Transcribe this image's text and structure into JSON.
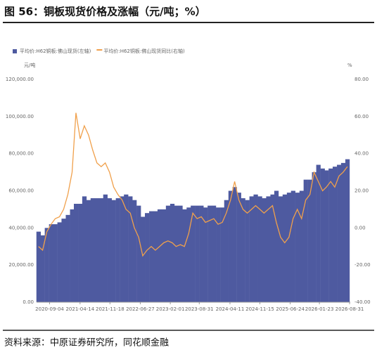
{
  "title": "图 56：铜板现货价格及涨幅（元/吨；%）",
  "source": "资料来源：中原证券研究所，同花顺金融",
  "chart_data": {
    "type": "bar",
    "ylabel": "元/吨",
    "y2label": "%",
    "x": [
      "2020-06-15",
      "2020-07-15",
      "2020-08-15",
      "2020-09-15",
      "2020-10-15",
      "2020-11-15",
      "2020-12-15",
      "2021-01-15",
      "2021-02-15",
      "2021-03-15",
      "2021-04-15",
      "2021-05-15",
      "2021-06-15",
      "2021-07-15",
      "2021-08-15",
      "2021-09-15",
      "2021-10-15",
      "2021-11-15",
      "2021-12-15",
      "2022-01-15",
      "2022-02-15",
      "2022-03-15",
      "2022-04-15",
      "2022-05-15",
      "2022-06-15",
      "2022-07-15",
      "2022-08-15",
      "2022-09-15",
      "2022-10-15",
      "2022-11-15",
      "2022-12-15",
      "2023-01-15",
      "2023-02-15",
      "2023-03-15",
      "2023-04-15",
      "2023-05-15",
      "2023-06-15",
      "2023-07-15",
      "2023-08-15",
      "2023-09-15",
      "2023-10-15",
      "2023-11-15",
      "2023-12-15",
      "2024-01-15",
      "2024-02-15",
      "2024-03-15",
      "2024-04-15",
      "2024-05-15",
      "2024-06-15",
      "2024-07-15",
      "2024-08-15",
      "2024-09-15",
      "2024-10-15",
      "2024-11-15",
      "2024-12-15",
      "2025-01-15",
      "2025-02-15",
      "2025-03-15",
      "2025-04-15",
      "2025-05-15",
      "2025-06-15",
      "2025-07-15",
      "2025-08-15",
      "2025-09-15",
      "2025-10-15",
      "2025-11-15",
      "2025-12-15",
      "2026-01-15",
      "2026-02-15",
      "2026-03-15",
      "2026-04-15",
      "2026-05-15",
      "2026-06-15",
      "2026-07-15",
      "2026-08-15"
    ],
    "xlim": [
      "2020-06-01",
      "2026-09-05"
    ],
    "xticks": [
      "2020-09-04",
      "2021-04-14",
      "2021-11-18",
      "2022-06-27",
      "2023-02-01",
      "2023-08-31",
      "2024-04-11",
      "2024-11-15",
      "2025-06-24",
      "2026-01-23",
      "2026-08-31"
    ],
    "ylim": [
      0,
      120000
    ],
    "yticks": [
      {
        "value": 0,
        "label": "0.00"
      },
      {
        "value": 20000,
        "label": "20,000.00"
      },
      {
        "value": 40000,
        "label": "40,000.00"
      },
      {
        "value": 60000,
        "label": "60,000.00"
      },
      {
        "value": 80000,
        "label": "80,000.00"
      },
      {
        "value": 100000,
        "label": "100,000.00"
      },
      {
        "value": 120000,
        "label": "120,000.00"
      }
    ],
    "y2lim": [
      -40,
      80
    ],
    "y2ticks": [
      {
        "value": -40,
        "label": "-40.00"
      },
      {
        "value": -20,
        "label": "-20.00"
      },
      {
        "value": 0,
        "label": "0.00"
      },
      {
        "value": 20,
        "label": "20.00"
      },
      {
        "value": 40,
        "label": "40.00"
      },
      {
        "value": 60,
        "label": "60.00"
      },
      {
        "value": 80,
        "label": "80.00"
      }
    ],
    "legend": "top-left",
    "series": [
      {
        "name": "平均价:H62铜板:佛山现货(左轴)",
        "type": "bar",
        "color": "#4e5aa0",
        "values": [
          38000,
          36000,
          40000,
          42000,
          42000,
          43000,
          45000,
          47000,
          50000,
          53000,
          53000,
          57000,
          55000,
          56000,
          56000,
          56000,
          58000,
          56000,
          55000,
          56000,
          57000,
          58000,
          57000,
          55000,
          52000,
          46000,
          48000,
          49000,
          49000,
          50000,
          50000,
          52000,
          53000,
          52000,
          52000,
          50000,
          51000,
          52000,
          52000,
          52000,
          51000,
          52000,
          52000,
          51000,
          51000,
          55000,
          60000,
          62000,
          59000,
          56000,
          55000,
          57000,
          58000,
          57000,
          56000,
          57000,
          58000,
          60000,
          57000,
          58000,
          59000,
          60000,
          59000,
          60000,
          66000,
          66000,
          70000,
          74000,
          72000,
          71000,
          72000,
          73000,
          74000,
          75000,
          77000
        ]
      },
      {
        "name": "平均价:H62铜板:佛山现货同比(右轴)",
        "type": "line",
        "axis": "y2",
        "color": "#f0a04b",
        "values": [
          -10,
          -12,
          -2,
          2,
          5,
          6,
          10,
          18,
          30,
          62,
          48,
          55,
          50,
          42,
          35,
          33,
          35,
          30,
          22,
          18,
          15,
          10,
          8,
          0,
          -5,
          -15,
          -12,
          -10,
          -12,
          -10,
          -8,
          -7,
          -8,
          -10,
          -9,
          -10,
          -3,
          8,
          5,
          6,
          3,
          4,
          5,
          2,
          3,
          8,
          15,
          25,
          15,
          10,
          8,
          10,
          12,
          10,
          8,
          10,
          12,
          3,
          -5,
          -8,
          -5,
          5,
          10,
          5,
          15,
          18,
          30,
          25,
          20,
          22,
          25,
          22,
          28,
          30,
          33
        ]
      }
    ]
  }
}
